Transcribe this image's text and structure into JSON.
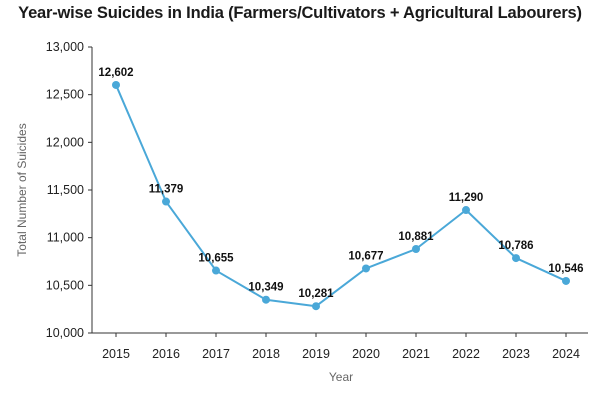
{
  "chart_data": {
    "type": "line",
    "title": "Year-wise Suicides in India (Farmers/Cultivators + Agricultural Labourers)",
    "xlabel": "Year",
    "ylabel": "Total Number of Suicides",
    "categories": [
      "2015",
      "2016",
      "2017",
      "2018",
      "2019",
      "2020",
      "2021",
      "2022",
      "2023",
      "2024"
    ],
    "series": [
      {
        "values": [
          12602,
          11379,
          10655,
          10349,
          10281,
          10677,
          10881,
          11290,
          10786,
          10546
        ],
        "value_labels": [
          "12,602",
          "11,379",
          "10,655",
          "10,349",
          "10,281",
          "10,677",
          "10,881",
          "11,290",
          "10,786",
          "10,546"
        ]
      }
    ],
    "ylim": [
      10000,
      13000
    ],
    "yticks": [
      10000,
      10500,
      11000,
      11500,
      12000,
      12500,
      13000
    ],
    "ytick_labels": [
      "10,000",
      "10,500",
      "11,000",
      "11,500",
      "12,000",
      "12,500",
      "13,000"
    ],
    "grid": false,
    "line_color": "#4AA8D8"
  }
}
